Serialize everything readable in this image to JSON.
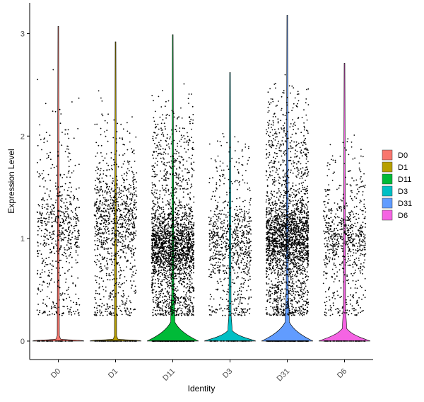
{
  "chart_data": {
    "type": "violin",
    "title": "",
    "xlabel": "Identity",
    "ylabel": "Expression Level",
    "ylim": [
      -0.18,
      3.3
    ],
    "y_ticks": [
      0,
      1,
      2,
      3
    ],
    "grid": false,
    "legend_position": "right",
    "categories": [
      "D0",
      "D1",
      "D11",
      "D3",
      "D31",
      "D6"
    ],
    "colors": {
      "D0": "#F8766D",
      "D1": "#B79F00",
      "D11": "#00BA38",
      "D3": "#00BFC4",
      "D31": "#619CFF",
      "D6": "#F564E3"
    },
    "series": [
      {
        "name": "D0",
        "max": 3.07,
        "zero_fraction": 0.97,
        "nonzero_mean": 1.1,
        "points": 700
      },
      {
        "name": "D1",
        "max": 2.92,
        "zero_fraction": 0.96,
        "nonzero_mean": 1.2,
        "points": 1100
      },
      {
        "name": "D11",
        "max": 2.99,
        "zero_fraction": 0.55,
        "nonzero_mean": 0.85,
        "points": 2600
      },
      {
        "name": "D3",
        "max": 2.62,
        "zero_fraction": 0.75,
        "nonzero_mean": 0.9,
        "points": 900
      },
      {
        "name": "D31",
        "max": 3.18,
        "zero_fraction": 0.55,
        "nonzero_mean": 0.95,
        "points": 2700
      },
      {
        "name": "D6",
        "max": 2.71,
        "zero_fraction": 0.7,
        "nonzero_mean": 0.95,
        "points": 800
      }
    ]
  }
}
